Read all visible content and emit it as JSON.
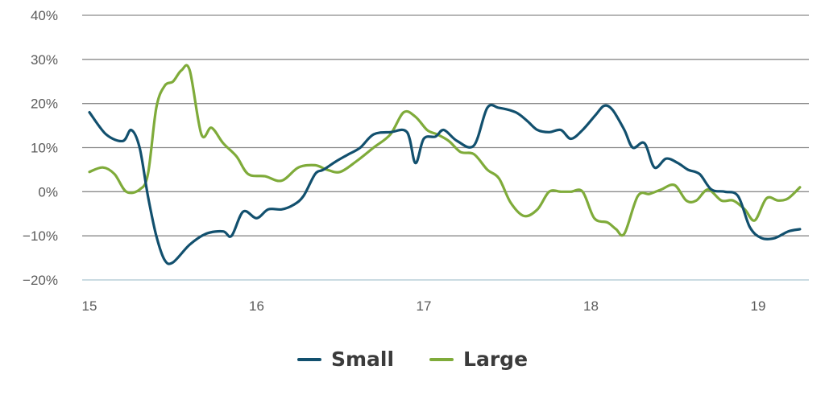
{
  "chart_data": {
    "type": "line",
    "x_ticks": [
      "15",
      "16",
      "17",
      "18",
      "19"
    ],
    "y_ticks": [
      "40%",
      "30%",
      "20%",
      "10%",
      "0%",
      "−10%",
      "−20%"
    ],
    "y_tick_values": [
      40,
      30,
      20,
      10,
      0,
      -10,
      -20
    ],
    "ylim": [
      -20,
      40
    ],
    "xlim": [
      15,
      19.3
    ],
    "grid": true,
    "legend_position": "bottom-center",
    "series": [
      {
        "name": "Small",
        "color": "#12506e",
        "points": [
          [
            15.0,
            18
          ],
          [
            15.1,
            13
          ],
          [
            15.2,
            11.5
          ],
          [
            15.25,
            14
          ],
          [
            15.3,
            10
          ],
          [
            15.35,
            -1
          ],
          [
            15.4,
            -10
          ],
          [
            15.45,
            -15.5
          ],
          [
            15.5,
            -16
          ],
          [
            15.6,
            -12
          ],
          [
            15.7,
            -9.5
          ],
          [
            15.8,
            -9
          ],
          [
            15.85,
            -10
          ],
          [
            15.92,
            -4.5
          ],
          [
            16.0,
            -6
          ],
          [
            16.07,
            -4
          ],
          [
            16.15,
            -4
          ],
          [
            16.22,
            -3
          ],
          [
            16.28,
            -1
          ],
          [
            16.35,
            4
          ],
          [
            16.4,
            5
          ],
          [
            16.48,
            7
          ],
          [
            16.55,
            8.5
          ],
          [
            16.62,
            10
          ],
          [
            16.7,
            13
          ],
          [
            16.8,
            13.5
          ],
          [
            16.9,
            13.5
          ],
          [
            16.95,
            6.5
          ],
          [
            17.0,
            12
          ],
          [
            17.07,
            12.5
          ],
          [
            17.12,
            14
          ],
          [
            17.2,
            11.5
          ],
          [
            17.3,
            10.5
          ],
          [
            17.38,
            19
          ],
          [
            17.45,
            19
          ],
          [
            17.55,
            18
          ],
          [
            17.62,
            16
          ],
          [
            17.68,
            14
          ],
          [
            17.75,
            13.5
          ],
          [
            17.82,
            14
          ],
          [
            17.88,
            12
          ],
          [
            17.95,
            14
          ],
          [
            18.03,
            17.5
          ],
          [
            18.08,
            19.5
          ],
          [
            18.13,
            18.5
          ],
          [
            18.2,
            14
          ],
          [
            18.25,
            10
          ],
          [
            18.32,
            11
          ],
          [
            18.38,
            5.5
          ],
          [
            18.45,
            7.5
          ],
          [
            18.52,
            6.5
          ],
          [
            18.58,
            5
          ],
          [
            18.65,
            4
          ],
          [
            18.72,
            0.5
          ],
          [
            18.8,
            0
          ],
          [
            18.88,
            -1
          ],
          [
            18.95,
            -8
          ],
          [
            19.02,
            -10.5
          ],
          [
            19.1,
            -10.5
          ],
          [
            19.18,
            -9
          ],
          [
            19.25,
            -8.5
          ]
        ]
      },
      {
        "name": "Large",
        "color": "#7fab3a",
        "points": [
          [
            15.0,
            4.5
          ],
          [
            15.08,
            5.5
          ],
          [
            15.15,
            4
          ],
          [
            15.22,
            0
          ],
          [
            15.3,
            0.5
          ],
          [
            15.35,
            4
          ],
          [
            15.4,
            19
          ],
          [
            15.45,
            24
          ],
          [
            15.5,
            25
          ],
          [
            15.55,
            27.5
          ],
          [
            15.6,
            27.5
          ],
          [
            15.67,
            13
          ],
          [
            15.73,
            14.5
          ],
          [
            15.8,
            11
          ],
          [
            15.88,
            8
          ],
          [
            15.95,
            4
          ],
          [
            16.05,
            3.5
          ],
          [
            16.15,
            2.5
          ],
          [
            16.25,
            5.5
          ],
          [
            16.35,
            6
          ],
          [
            16.42,
            5
          ],
          [
            16.5,
            4.5
          ],
          [
            16.6,
            7
          ],
          [
            16.7,
            10
          ],
          [
            16.8,
            13
          ],
          [
            16.88,
            18
          ],
          [
            16.95,
            17
          ],
          [
            17.02,
            14
          ],
          [
            17.08,
            13
          ],
          [
            17.15,
            11.5
          ],
          [
            17.22,
            9
          ],
          [
            17.3,
            8.5
          ],
          [
            17.38,
            5
          ],
          [
            17.45,
            3
          ],
          [
            17.52,
            -2.5
          ],
          [
            17.6,
            -5.5
          ],
          [
            17.68,
            -4
          ],
          [
            17.75,
            0
          ],
          [
            17.82,
            0
          ],
          [
            17.88,
            0
          ],
          [
            17.95,
            0
          ],
          [
            18.02,
            -6
          ],
          [
            18.1,
            -7
          ],
          [
            18.15,
            -8.5
          ],
          [
            18.2,
            -9.5
          ],
          [
            18.28,
            -1
          ],
          [
            18.35,
            -0.5
          ],
          [
            18.42,
            0.5
          ],
          [
            18.5,
            1.5
          ],
          [
            18.57,
            -2
          ],
          [
            18.63,
            -2
          ],
          [
            18.7,
            0.5
          ],
          [
            18.78,
            -2
          ],
          [
            18.85,
            -2
          ],
          [
            18.92,
            -4
          ],
          [
            18.98,
            -6.5
          ],
          [
            19.05,
            -1.5
          ],
          [
            19.12,
            -2
          ],
          [
            19.18,
            -1.5
          ],
          [
            19.25,
            1
          ]
        ]
      }
    ]
  }
}
